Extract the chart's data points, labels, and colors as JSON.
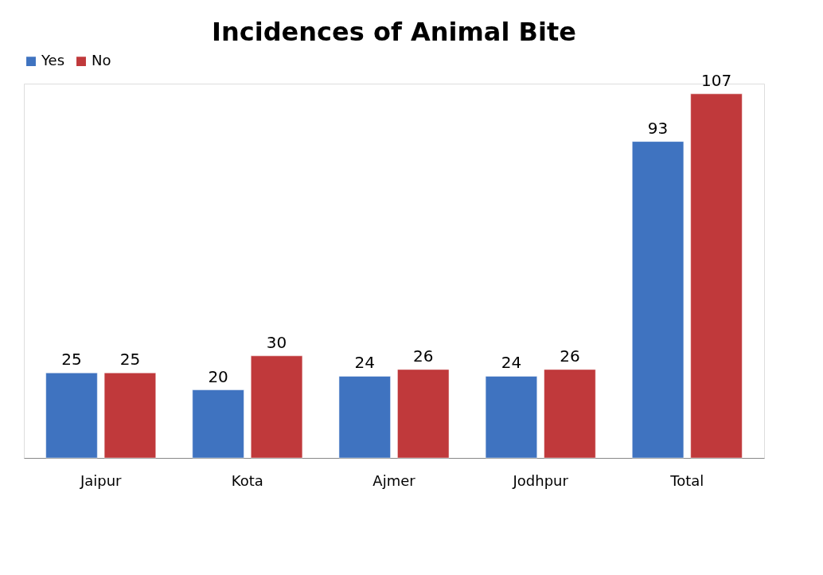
{
  "chart_data": {
    "type": "bar",
    "title": "Incidences of Animal Bite",
    "categories": [
      "Jaipur",
      "Kota",
      "Ajmer",
      "Jodhpur",
      "Total"
    ],
    "series": [
      {
        "name": "Yes",
        "color": "#3f73c0",
        "values": [
          25,
          20,
          24,
          24,
          93
        ]
      },
      {
        "name": "No",
        "color": "#c0393b",
        "values": [
          25,
          30,
          26,
          26,
          107
        ]
      }
    ],
    "data_labels": true,
    "legend": "top",
    "grid": false,
    "tick_labels": "x"
  }
}
